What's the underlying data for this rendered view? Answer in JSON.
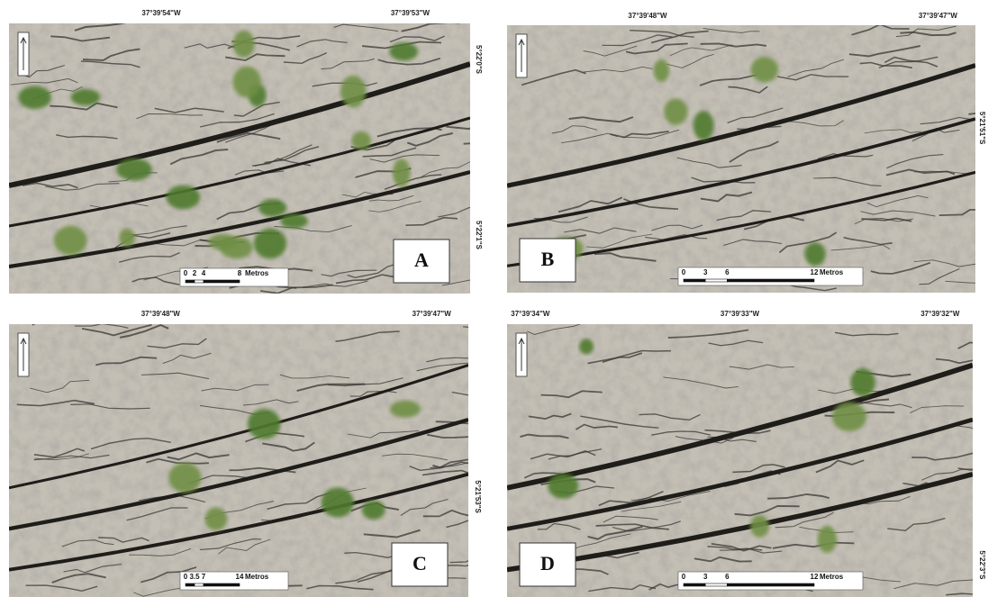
{
  "panels": [
    {
      "label": "A",
      "top_coords": [
        "37°39'54\"W",
        "37°39'53\"W"
      ],
      "side_coords": [
        "5°22'0\"S",
        "5°22'1\"S"
      ],
      "scale": {
        "ticks": [
          "0",
          "2",
          "4",
          "8"
        ],
        "unit": "Metros"
      }
    },
    {
      "label": "B",
      "top_coords": [
        "37°39'48\"W",
        "37°39'47\"W"
      ],
      "side_coords": [
        "5°21'51\"S"
      ],
      "scale": {
        "ticks": [
          "0",
          "3",
          "6",
          "12"
        ],
        "unit": "Metros"
      }
    },
    {
      "label": "C",
      "top_coords": [
        "37°39'48\"W",
        "37°39'47\"W"
      ],
      "side_coords": [
        "5°21'53\"S"
      ],
      "scale": {
        "ticks": [
          "0",
          "3.5",
          "7",
          "14"
        ],
        "unit": "Metros"
      }
    },
    {
      "label": "D",
      "top_coords": [
        "37°39'34\"W",
        "37°39'33\"W",
        "37°39'32\"W"
      ],
      "side_coords": [
        "5°22'3\"S"
      ],
      "scale": {
        "ticks": [
          "0",
          "3",
          "6",
          "12"
        ],
        "unit": "Metros"
      }
    }
  ]
}
